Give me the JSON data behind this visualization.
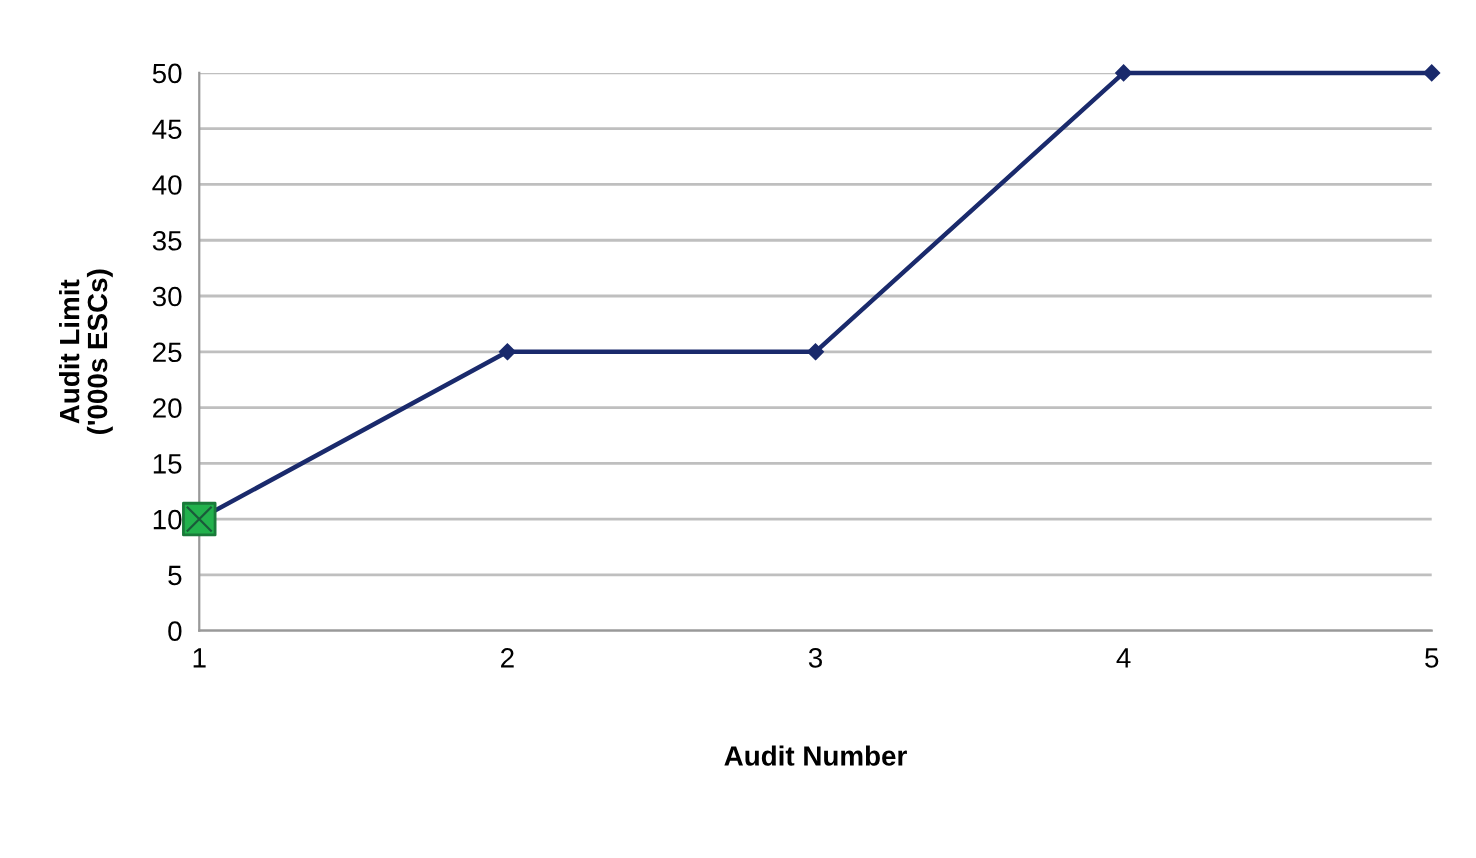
{
  "chart_data": {
    "type": "line",
    "xlabel": "Audit Number",
    "ylabel": "Audit Limit\n('000s ESCs)",
    "x": [
      1,
      2,
      3,
      4,
      5
    ],
    "series": [
      {
        "color": "#1a2a6c",
        "marker": "diamond",
        "values": [
          10,
          25,
          25,
          50,
          50
        ]
      },
      {
        "type": "scatter",
        "color": "#22b14c",
        "marker": "square",
        "x": [
          1
        ],
        "values": [
          10
        ]
      }
    ],
    "xlim": [
      1,
      5
    ],
    "xticks": [
      1,
      2,
      3,
      4,
      5
    ],
    "ylim": [
      0,
      50
    ],
    "yticks": [
      0,
      5,
      10,
      15,
      20,
      25,
      30,
      35,
      40,
      45,
      50
    ],
    "grid": "y",
    "line_style": "solid",
    "legend": false
  }
}
